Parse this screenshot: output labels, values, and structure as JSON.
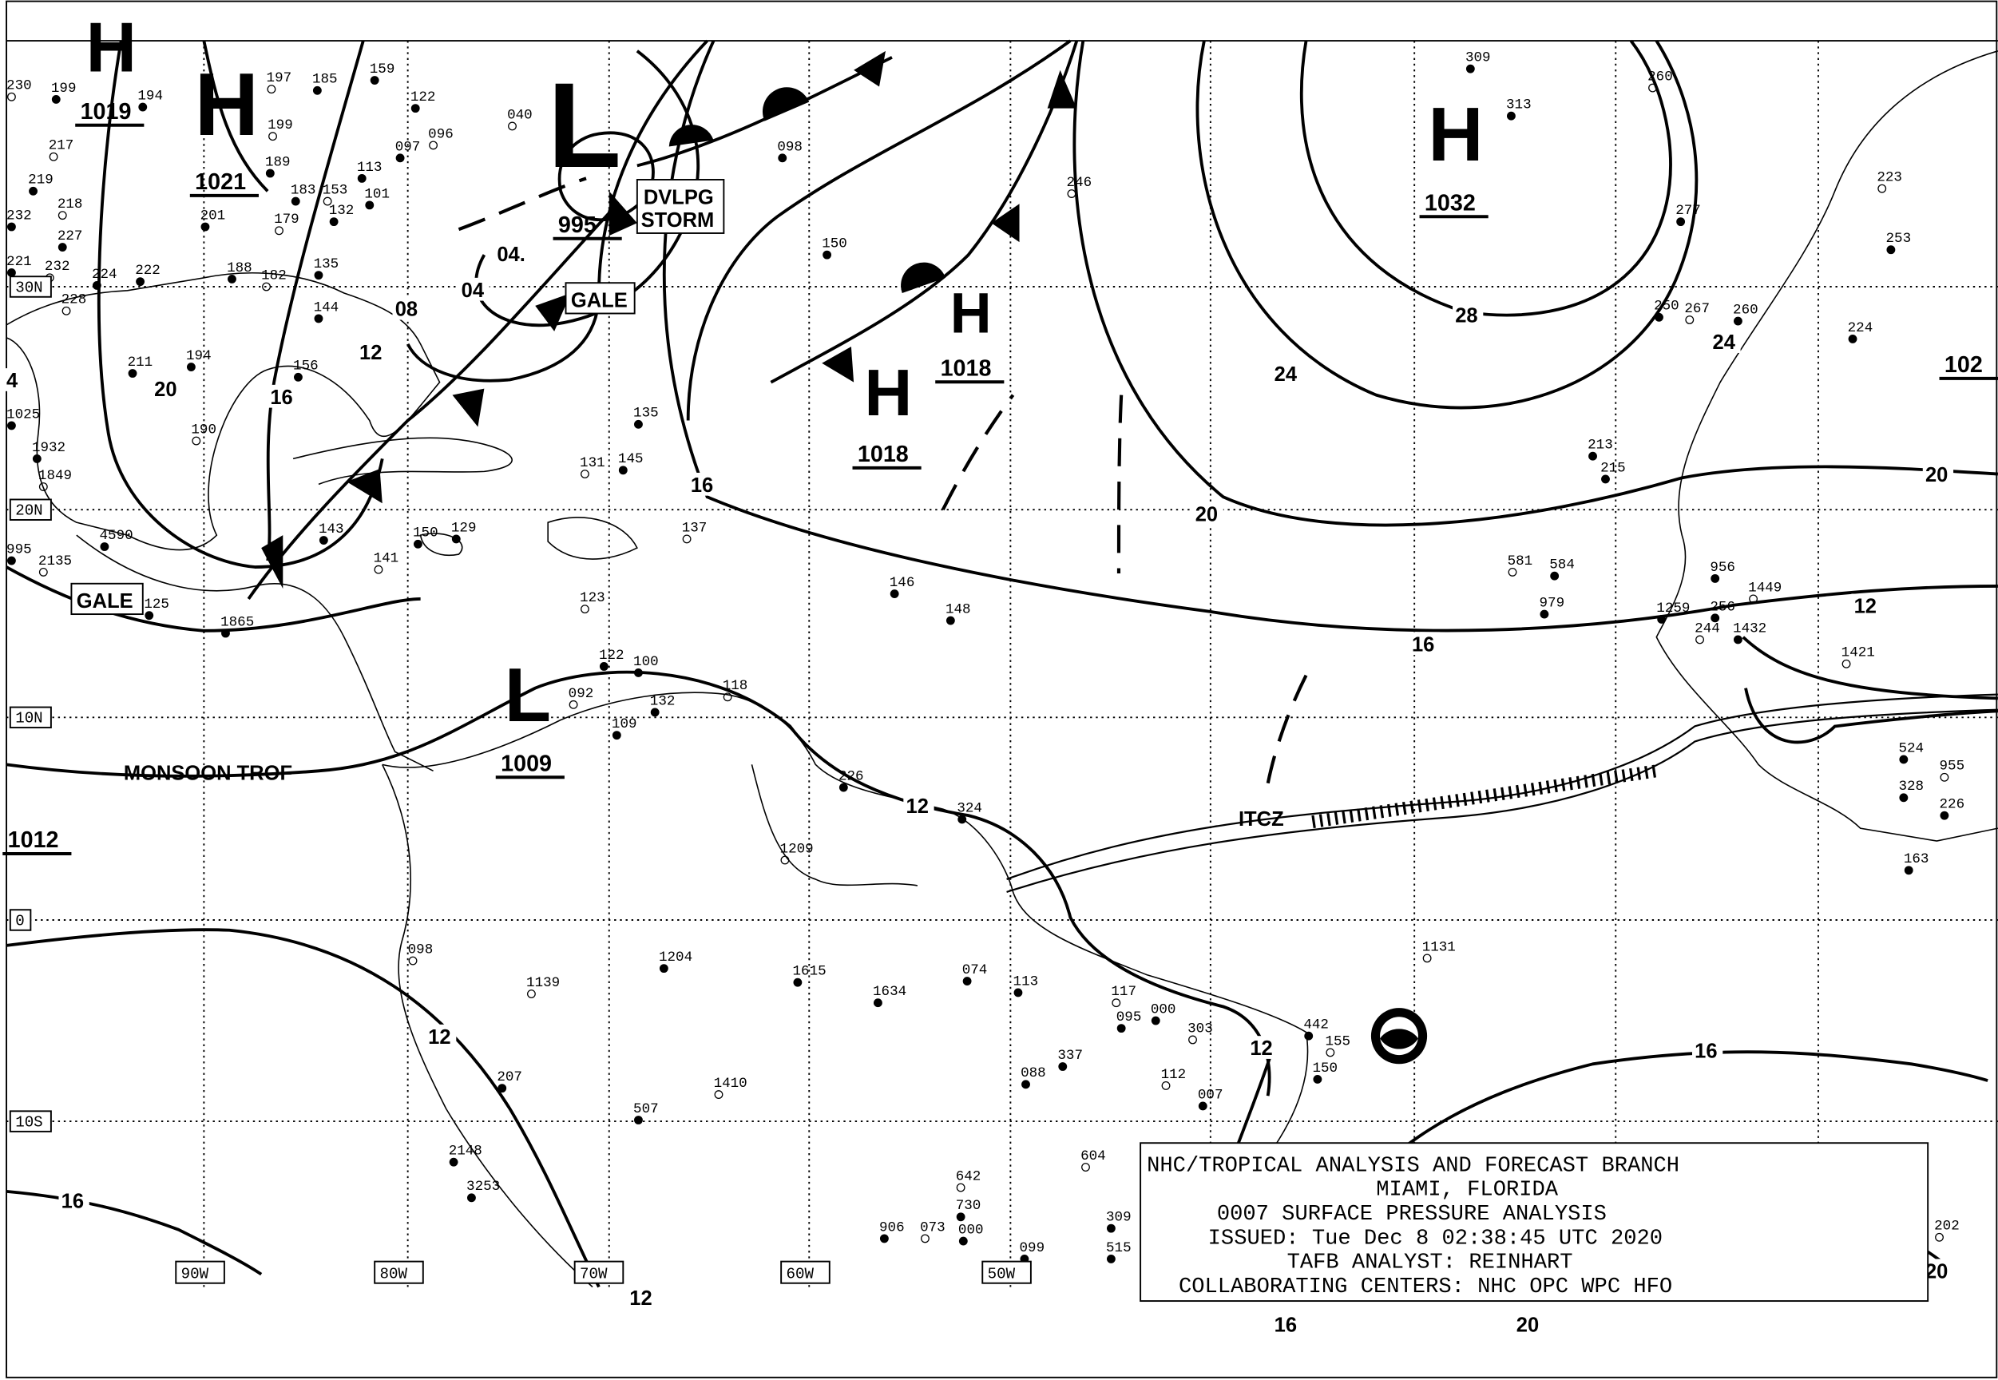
{
  "legend": {
    "line1": "NHC/TROPICAL ANALYSIS AND FORECAST BRANCH",
    "line2": "MIAMI, FLORIDA",
    "line3": "0007 SURFACE PRESSURE ANALYSIS",
    "line4": "ISSUED: Tue Dec 8 02:38:45 UTC 2020",
    "line5": "TAFB ANALYST: REINHART",
    "line6": "COLLABORATING CENTERS: NHC OPC WPC HFO"
  },
  "lat_labels": [
    "30N",
    "20N",
    "10N",
    "0",
    "10S"
  ],
  "lon_labels": [
    "90W",
    "80W",
    "70W",
    "60W",
    "50W"
  ],
  "pressure_centers": [
    {
      "type": "H",
      "value": "1019"
    },
    {
      "type": "H",
      "value": "1021"
    },
    {
      "type": "L",
      "value": "995"
    },
    {
      "type": "H",
      "value": "1018"
    },
    {
      "type": "H",
      "value": "1018"
    },
    {
      "type": "H",
      "value": "1032"
    },
    {
      "type": "L",
      "value": "1009"
    },
    {
      "type": "",
      "value": "1012"
    },
    {
      "type": "",
      "value": "102"
    }
  ],
  "isobar_labels": [
    "04.",
    "04",
    "08",
    "12",
    "16",
    "20",
    "16",
    "20",
    "24",
    "28",
    "24",
    "20",
    "16",
    "12",
    "12",
    "12",
    "12",
    "16",
    "16",
    "16",
    "20",
    "20",
    "12",
    "4"
  ],
  "boxed_labels": {
    "storm_line1": "DVLPG",
    "storm_line2": "STORM",
    "gale1": "GALE",
    "gale2": "GALE"
  },
  "feature_labels": {
    "monsoon": "MONSOON TROF",
    "itcz": "ITCZ"
  },
  "stations": [
    "230",
    "199",
    "194",
    "217",
    "219",
    "232",
    "218",
    "227",
    "221",
    "232",
    "224",
    "222",
    "228",
    "211",
    "194",
    "190",
    "156",
    "185",
    "197",
    "159",
    "122",
    "096",
    "097",
    "113",
    "199",
    "189",
    "183",
    "153",
    "101",
    "132",
    "179",
    "201",
    "188",
    "182",
    "135",
    "144",
    "040",
    "098",
    "150",
    "246",
    "309",
    "313",
    "260",
    "277",
    "250",
    "267",
    "260",
    "224",
    "223",
    "253",
    "135",
    "131",
    "145",
    "143",
    "141",
    "150",
    "129",
    "137",
    "146",
    "148",
    "123",
    "122",
    "100",
    "092",
    "109",
    "132",
    "118",
    "226",
    "324",
    "1131",
    "074",
    "113",
    "117",
    "095",
    "000",
    "303",
    "337",
    "088",
    "112",
    "007",
    "442",
    "155",
    "150",
    "1204",
    "1139",
    "1615",
    "1634",
    "1410",
    "207",
    "507",
    "098",
    "2148",
    "3253",
    "642",
    "730",
    "906",
    "073",
    "000",
    "099",
    "604",
    "309",
    "515",
    "202",
    "163",
    "524",
    "955",
    "328",
    "226",
    "1209",
    "213",
    "215",
    "581",
    "584",
    "979",
    "1449",
    "956",
    "1432",
    "1421",
    "256",
    "1259",
    "244",
    "125",
    "1865",
    "2135",
    "1025",
    "1932",
    "1849",
    "995",
    "4590"
  ],
  "map_style": {
    "ink": "#000000",
    "paper": "#ffffff"
  }
}
